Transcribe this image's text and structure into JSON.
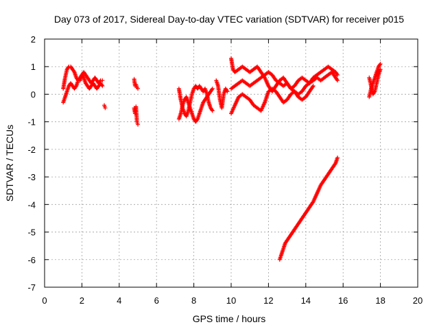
{
  "chart_data": {
    "type": "scatter",
    "title": "Day 073 of 2017, Sidereal Day-to-day VTEC variation (SDTVAR) for receiver p015",
    "xlabel": "GPS time / hours",
    "ylabel": "SDTVAR / TECUs",
    "xlim": [
      0,
      20
    ],
    "ylim": [
      -7,
      2
    ],
    "x_ticks": [
      0,
      2,
      4,
      6,
      8,
      10,
      12,
      14,
      16,
      18,
      20
    ],
    "y_ticks": [
      -7,
      -6,
      -5,
      -4,
      -3,
      -2,
      -1,
      0,
      1,
      2
    ],
    "grid": true,
    "marker": "+",
    "series_color": "#ff0000",
    "segments": [
      {
        "name": "a",
        "x": [
          1.0,
          1.1,
          1.2,
          1.3,
          1.4,
          1.5,
          1.6,
          1.7,
          1.8,
          1.9,
          2.0,
          2.1,
          2.2,
          2.3,
          2.4,
          2.5,
          2.6,
          2.7,
          2.8,
          2.9,
          3.0,
          3.1
        ],
        "y": [
          0.2,
          0.6,
          0.9,
          1.0,
          1.0,
          0.9,
          0.8,
          0.6,
          0.5,
          0.5,
          0.7,
          0.8,
          0.7,
          0.6,
          0.5,
          0.4,
          0.5,
          0.6,
          0.5,
          0.4,
          0.5,
          0.5
        ]
      },
      {
        "name": "b",
        "x": [
          1.0,
          1.1,
          1.2,
          1.3,
          1.4,
          1.5,
          1.6,
          1.7,
          1.8,
          1.9,
          2.0,
          2.1,
          2.2,
          2.3,
          2.4,
          2.5,
          2.6,
          2.7,
          2.8,
          2.9,
          3.0,
          3.1
        ],
        "y": [
          -0.3,
          -0.1,
          0.1,
          0.3,
          0.4,
          0.3,
          0.2,
          0.3,
          0.5,
          0.6,
          0.7,
          0.6,
          0.4,
          0.3,
          0.2,
          0.3,
          0.4,
          0.3,
          0.2,
          0.3,
          0.4,
          0.3
        ]
      },
      {
        "name": "c",
        "x": [
          3.2,
          3.25
        ],
        "y": [
          -0.4,
          -0.5
        ]
      },
      {
        "name": "d",
        "x": [
          4.8,
          4.85,
          4.9,
          4.95,
          5.0
        ],
        "y": [
          0.55,
          0.3,
          0.35,
          0.25,
          0.2
        ]
      },
      {
        "name": "e",
        "x": [
          4.8,
          4.85,
          4.9,
          4.95,
          5.0
        ],
        "y": [
          -0.5,
          -0.7,
          -0.45,
          -1.0,
          -1.1
        ]
      },
      {
        "name": "f",
        "x": [
          7.2,
          7.3,
          7.4,
          7.5,
          7.6,
          7.7,
          7.8,
          7.9,
          8.0,
          8.1,
          8.2,
          8.3,
          8.4,
          8.5,
          8.6,
          8.7,
          8.8,
          8.9,
          9.0
        ],
        "y": [
          0.2,
          -0.2,
          -0.5,
          -0.7,
          -0.8,
          -0.6,
          -0.3,
          0.0,
          0.2,
          0.3,
          0.2,
          0.3,
          0.2,
          0.1,
          0.2,
          0.0,
          -0.3,
          -0.5,
          -0.6
        ]
      },
      {
        "name": "g",
        "x": [
          7.2,
          7.3,
          7.4,
          7.5,
          7.6,
          7.7,
          7.8,
          7.9,
          8.0,
          8.1,
          8.2,
          8.3,
          8.4,
          8.5,
          8.6,
          8.7,
          8.8,
          8.9,
          9.0
        ],
        "y": [
          -0.9,
          -0.7,
          -0.4,
          -0.2,
          -0.1,
          -0.3,
          -0.5,
          -0.7,
          -0.9,
          -1.0,
          -0.9,
          -0.7,
          -0.5,
          -0.3,
          -0.2,
          -0.1,
          0.0,
          0.1,
          0.2
        ]
      },
      {
        "name": "h",
        "x": [
          9.2,
          9.3,
          9.4,
          9.5,
          9.6,
          9.7,
          9.8
        ],
        "y": [
          0.5,
          0.3,
          -0.2,
          -0.5,
          0.0,
          0.2,
          0.1
        ]
      },
      {
        "name": "i",
        "x": [
          10.0,
          10.1,
          10.2,
          10.4,
          10.6,
          10.8,
          11.0,
          11.2,
          11.4,
          11.6,
          11.8,
          12.0,
          12.2,
          12.4,
          12.6,
          12.8,
          13.0,
          13.2,
          13.4,
          13.6,
          13.8,
          14.0,
          14.2,
          14.4,
          14.6,
          14.8,
          15.0,
          15.2,
          15.4,
          15.6,
          15.7
        ],
        "y": [
          1.3,
          0.9,
          0.8,
          0.9,
          1.0,
          0.9,
          0.8,
          0.9,
          1.0,
          0.8,
          0.6,
          0.3,
          0.1,
          0.3,
          0.5,
          0.6,
          0.4,
          0.2,
          0.3,
          0.5,
          0.6,
          0.5,
          0.4,
          0.6,
          0.7,
          0.8,
          0.9,
          1.0,
          0.9,
          0.8,
          0.7
        ]
      },
      {
        "name": "j",
        "x": [
          10.0,
          10.2,
          10.4,
          10.6,
          10.8,
          11.0,
          11.2,
          11.4,
          11.6,
          11.8,
          12.0,
          12.2,
          12.4,
          12.6,
          12.8,
          13.0,
          13.2,
          13.4,
          13.6,
          13.8,
          14.0,
          14.2,
          14.4,
          14.6,
          14.8,
          15.0,
          15.2,
          15.4,
          15.6,
          15.7
        ],
        "y": [
          0.2,
          0.3,
          0.4,
          0.5,
          0.4,
          0.3,
          0.4,
          0.5,
          0.6,
          0.7,
          0.8,
          0.7,
          0.5,
          0.4,
          0.3,
          0.4,
          0.2,
          0.1,
          0.0,
          0.1,
          0.3,
          0.4,
          0.5,
          0.6,
          0.5,
          0.6,
          0.7,
          0.8,
          0.6,
          0.5
        ]
      },
      {
        "name": "k",
        "x": [
          10.0,
          10.2,
          10.4,
          10.6,
          10.8,
          11.0,
          11.2,
          11.4,
          11.6,
          11.8,
          12.0,
          12.2,
          12.4,
          12.6,
          12.8,
          13.0,
          13.2,
          13.4,
          13.6,
          13.8,
          14.0,
          14.2,
          14.4
        ],
        "y": [
          -0.7,
          -0.4,
          -0.1,
          0.0,
          -0.1,
          -0.2,
          -0.4,
          -0.5,
          -0.6,
          -0.3,
          0.1,
          0.2,
          0.1,
          -0.1,
          -0.3,
          -0.2,
          0.0,
          0.1,
          -0.1,
          -0.2,
          -0.1,
          0.1,
          0.3
        ]
      },
      {
        "name": "l",
        "x": [
          12.6,
          12.7,
          12.8,
          12.9,
          13.0,
          13.2,
          13.4,
          13.6,
          13.8,
          14.0,
          14.2,
          14.4,
          14.6,
          14.8,
          15.0,
          15.2,
          15.4,
          15.6,
          15.7
        ],
        "y": [
          -6.0,
          -5.8,
          -5.6,
          -5.4,
          -5.3,
          -5.1,
          -4.9,
          -4.7,
          -4.5,
          -4.3,
          -4.1,
          -3.9,
          -3.6,
          -3.3,
          -3.1,
          -2.9,
          -2.7,
          -2.5,
          -2.3
        ]
      },
      {
        "name": "m",
        "x": [
          17.4,
          17.5,
          17.6,
          17.7,
          17.8,
          17.9,
          18.0
        ],
        "y": [
          -0.1,
          0.2,
          0.4,
          0.6,
          0.8,
          1.0,
          1.1
        ]
      },
      {
        "name": "n",
        "x": [
          17.4,
          17.5,
          17.6,
          17.7,
          17.8,
          17.9,
          18.0
        ],
        "y": [
          0.6,
          0.3,
          0.0,
          0.1,
          0.4,
          0.7,
          0.9
        ]
      }
    ]
  }
}
